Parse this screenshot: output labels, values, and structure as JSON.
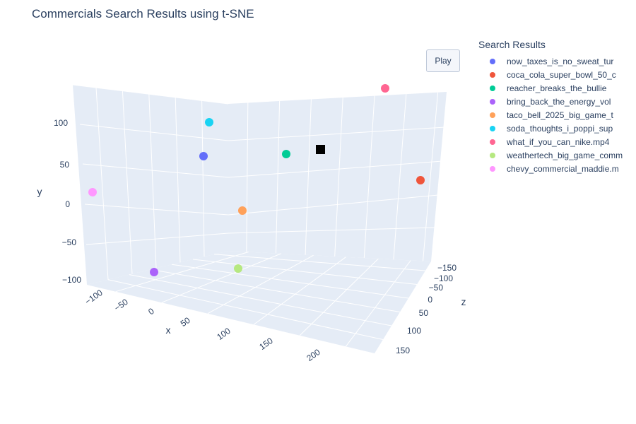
{
  "title": "Commercials Search Results using t-SNE",
  "play_label": "Play",
  "legend_title": "Search Results",
  "chart_data": {
    "type": "scatter3d",
    "title": "Commercials Search Results using t-SNE",
    "xlabel": "x",
    "ylabel": "y",
    "zlabel": "z",
    "x_ticks": [
      "−100",
      "−50",
      "0",
      "50",
      "100",
      "150",
      "200"
    ],
    "y_ticks": [
      "−100",
      "−50",
      "0",
      "50",
      "100"
    ],
    "z_ticks": [
      "−150",
      "−100",
      "−50",
      "0",
      "50",
      "100",
      "150"
    ],
    "grid": true,
    "legend_position": "top-right",
    "series": [
      {
        "name": "now_taxes_is_no_sweat_tur",
        "color": "#636efa"
      },
      {
        "name": "coca_cola_super_bowl_50_c",
        "color": "#ef553b"
      },
      {
        "name": "reacher_breaks_the_bullie",
        "color": "#00cc96"
      },
      {
        "name": "bring_back_the_energy_vol",
        "color": "#ab63fa"
      },
      {
        "name": "taco_bell_2025_big_game_t",
        "color": "#ffa15a"
      },
      {
        "name": "soda_thoughts_i_poppi_sup",
        "color": "#19d3f3"
      },
      {
        "name": "what_if_you_can_nike.mp4",
        "color": "#ff6692"
      },
      {
        "name": "weathertech_big_game_comm",
        "color": "#b6e880"
      },
      {
        "name": "chevy_commercial_maddie.m",
        "color": "#ff97ff"
      }
    ],
    "query_marker": {
      "shape": "square",
      "color": "#000000"
    }
  }
}
